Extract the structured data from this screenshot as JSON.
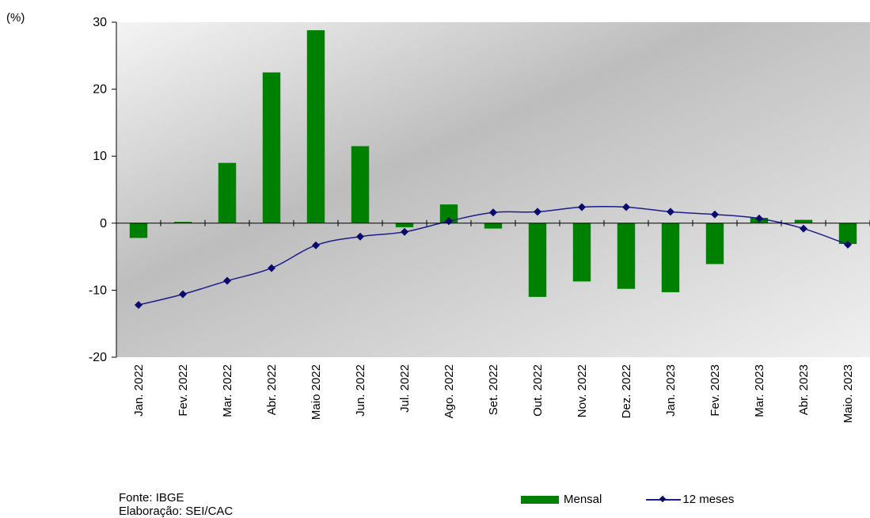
{
  "chart_data": {
    "type": "bar",
    "unit_label": "(%)",
    "categories": [
      "Jan. 2022",
      "Fev. 2022",
      "Mar. 2022",
      "Abr. 2022",
      "Maio 2022",
      "Jun. 2022",
      "Jul. 2022",
      "Ago. 2022",
      "Set. 2022",
      "Out. 2022",
      "Nov. 2022",
      "Dez. 2022",
      "Jan. 2023",
      "Fev. 2023",
      "Mar. 2023",
      "Abr. 2023",
      "Maio. 2023"
    ],
    "ylim": [
      -20,
      30
    ],
    "yticks": [
      "30",
      "20",
      "10",
      "0",
      "-10",
      "-20"
    ],
    "series": [
      {
        "name": "Mensal",
        "kind": "bar",
        "color": "#008000",
        "values": [
          -2.2,
          0.2,
          9.0,
          22.5,
          28.8,
          11.5,
          -0.6,
          2.8,
          -0.8,
          -11.0,
          -8.7,
          -9.8,
          -10.3,
          -6.1,
          0.8,
          0.5,
          -3.1
        ]
      },
      {
        "name": "12 meses",
        "kind": "line",
        "color": "#1c1c8c",
        "values": [
          -12.2,
          -10.6,
          -8.6,
          -6.7,
          -3.3,
          -2.0,
          -1.3,
          0.3,
          1.6,
          1.7,
          2.4,
          2.4,
          1.7,
          1.3,
          0.7,
          -0.8,
          -3.2
        ]
      }
    ]
  },
  "footer": {
    "source": "Fonte: IBGE",
    "credit": "Elaboração: SEI/CAC"
  },
  "legend": {
    "bar_label": "Mensal",
    "line_label": "12 meses"
  }
}
